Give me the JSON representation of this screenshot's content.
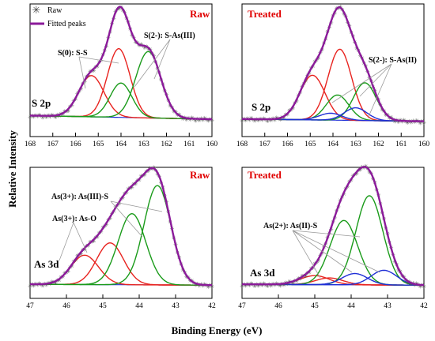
{
  "figure": {
    "xlabel": "Binding Energy (eV)",
    "ylabel": "Relative Intensity",
    "legend": [
      "Raw",
      "Fitted peaks"
    ]
  },
  "colors": {
    "raw": "#555555",
    "fit": "#8b1a9a",
    "red": "#e8231f",
    "green": "#1a9b1a",
    "blue": "#1f2fd6",
    "condition_text": "#e00000"
  },
  "chart_data": [
    {
      "id": "s-raw",
      "type": "line",
      "condition": "Raw",
      "region": "S 2p",
      "xlim": [
        168,
        160
      ],
      "x_ticks": [
        168,
        167,
        166,
        165,
        164,
        163,
        162,
        161,
        160
      ],
      "baseline": 0.08,
      "ymax": 1.0,
      "peaks": [
        {
          "color": "red",
          "center": 165.3,
          "height": 0.36,
          "sigma": 0.55
        },
        {
          "color": "red",
          "center": 164.1,
          "height": 0.6,
          "sigma": 0.5
        },
        {
          "color": "green",
          "center": 164.0,
          "height": 0.3,
          "sigma": 0.48
        },
        {
          "color": "green",
          "center": 162.8,
          "height": 0.58,
          "sigma": 0.55
        }
      ],
      "annotations": [
        "S(0): S-S",
        "S(2-): S-As(III)"
      ]
    },
    {
      "id": "s-treated",
      "type": "line",
      "condition": "Treated",
      "region": "S 2p",
      "xlim": [
        168,
        160
      ],
      "x_ticks": [
        168,
        167,
        166,
        165,
        164,
        163,
        162,
        161,
        160
      ],
      "baseline": 0.05,
      "ymax": 1.0,
      "peaks": [
        {
          "color": "red",
          "center": 164.9,
          "height": 0.39,
          "sigma": 0.55
        },
        {
          "color": "red",
          "center": 163.7,
          "height": 0.62,
          "sigma": 0.52
        },
        {
          "color": "green",
          "center": 163.8,
          "height": 0.22,
          "sigma": 0.5
        },
        {
          "color": "green",
          "center": 162.6,
          "height": 0.33,
          "sigma": 0.5
        },
        {
          "color": "blue",
          "center": 164.1,
          "height": 0.06,
          "sigma": 0.5
        },
        {
          "color": "blue",
          "center": 163.0,
          "height": 0.11,
          "sigma": 0.5
        }
      ],
      "annotations": [
        "S(2-): S-As(II)"
      ]
    },
    {
      "id": "as-raw",
      "type": "line",
      "condition": "Raw",
      "region": "As 3d",
      "xlim": [
        47,
        42
      ],
      "x_ticks": [
        47,
        46,
        45,
        44,
        43,
        42
      ],
      "baseline": 0.02,
      "ymax": 1.0,
      "peaks": [
        {
          "color": "red",
          "center": 45.5,
          "height": 0.26,
          "sigma": 0.38
        },
        {
          "color": "red",
          "center": 44.8,
          "height": 0.37,
          "sigma": 0.37
        },
        {
          "color": "green",
          "center": 44.2,
          "height": 0.63,
          "sigma": 0.38
        },
        {
          "color": "green",
          "center": 43.5,
          "height": 0.88,
          "sigma": 0.37
        }
      ],
      "annotations": [
        "As(3+): As(III)-S",
        "As(3+): As-O"
      ]
    },
    {
      "id": "as-treated",
      "type": "line",
      "condition": "Treated",
      "region": "As 3d",
      "xlim": [
        47,
        42
      ],
      "x_ticks": [
        47,
        46,
        45,
        44,
        43,
        42
      ],
      "baseline": 0.02,
      "ymax": 1.0,
      "peaks": [
        {
          "color": "red",
          "center": 45.0,
          "height": 0.08,
          "sigma": 0.4
        },
        {
          "color": "red",
          "center": 44.6,
          "height": 0.06,
          "sigma": 0.38
        },
        {
          "color": "green",
          "center": 44.2,
          "height": 0.57,
          "sigma": 0.38
        },
        {
          "color": "green",
          "center": 43.5,
          "height": 0.79,
          "sigma": 0.37
        },
        {
          "color": "blue",
          "center": 43.9,
          "height": 0.1,
          "sigma": 0.35
        },
        {
          "color": "blue",
          "center": 43.1,
          "height": 0.13,
          "sigma": 0.35
        }
      ],
      "annotations": [
        "As(2+): As(II)-S"
      ]
    }
  ]
}
